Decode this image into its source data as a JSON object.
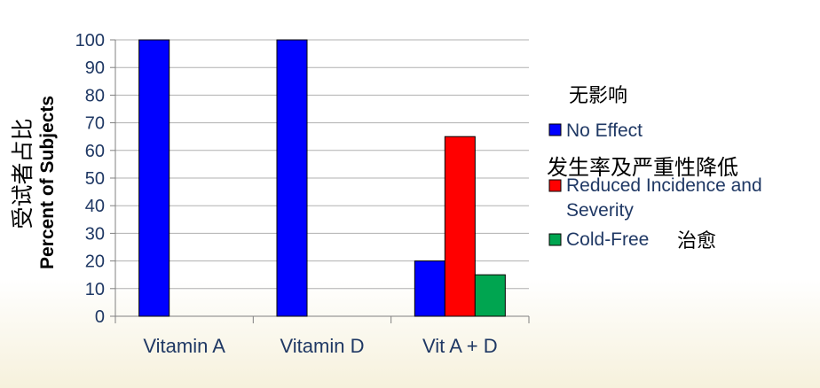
{
  "chart_data": {
    "type": "bar",
    "categories": [
      "Vitamin A",
      "Vitamin D",
      "Vit A + D"
    ],
    "series": [
      {
        "name": "No Effect",
        "name_zh": "无影响",
        "color": "#0000ff",
        "values": [
          100,
          100,
          20
        ]
      },
      {
        "name": "Reduced Incidence and Severity",
        "name_zh": "发生率及严重性降低",
        "color": "#ff0000",
        "values": [
          0,
          0,
          65
        ]
      },
      {
        "name": "Cold-Free",
        "name_zh": "治愈",
        "color": "#00a550",
        "values": [
          0,
          0,
          15
        ]
      }
    ],
    "ylabel": "Percent of Subjects",
    "ylabel_zh": "受试者占比",
    "ylim": [
      0,
      100
    ],
    "yticks": [
      "0",
      "10",
      "20",
      "30",
      "40",
      "50",
      "60",
      "70",
      "80",
      "90",
      "100"
    ],
    "grid": true,
    "legend": "right"
  }
}
